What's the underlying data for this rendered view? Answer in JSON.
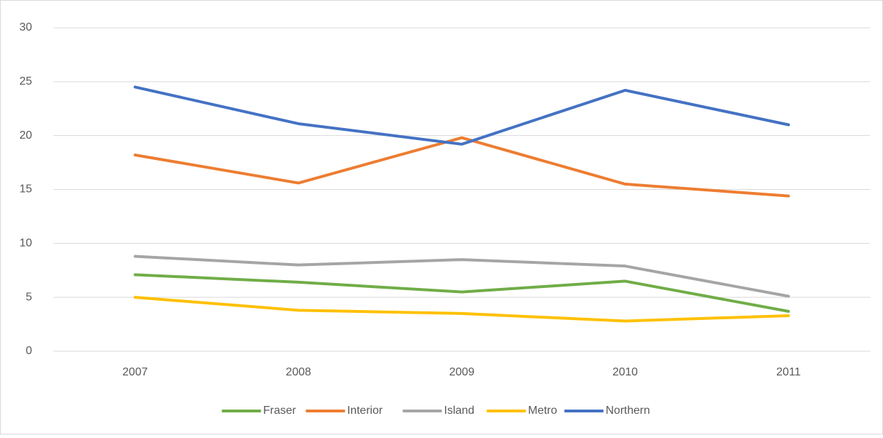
{
  "chart_data": {
    "type": "line",
    "categories": [
      "2007",
      "2008",
      "2009",
      "2010",
      "2011"
    ],
    "series": [
      {
        "name": "Fraser",
        "color": "#70ad47",
        "values": [
          7.1,
          6.4,
          5.5,
          6.5,
          3.7
        ]
      },
      {
        "name": "Interior",
        "color": "#ed7d31",
        "values": [
          18.2,
          15.6,
          19.8,
          15.5,
          14.4
        ]
      },
      {
        "name": "Island",
        "color": "#a5a5a5",
        "values": [
          8.8,
          8.0,
          8.5,
          7.9,
          5.1
        ]
      },
      {
        "name": "Metro",
        "color": "#ffc000",
        "values": [
          5.0,
          3.8,
          3.5,
          2.8,
          3.3
        ]
      },
      {
        "name": "Northern",
        "color": "#4472c4",
        "values": [
          24.5,
          21.1,
          19.2,
          24.2,
          21.0
        ]
      }
    ],
    "ylim": [
      0,
      30
    ],
    "yticks": [
      0,
      5,
      10,
      15,
      20,
      25,
      30
    ],
    "grid": true,
    "legend": "bottom"
  }
}
